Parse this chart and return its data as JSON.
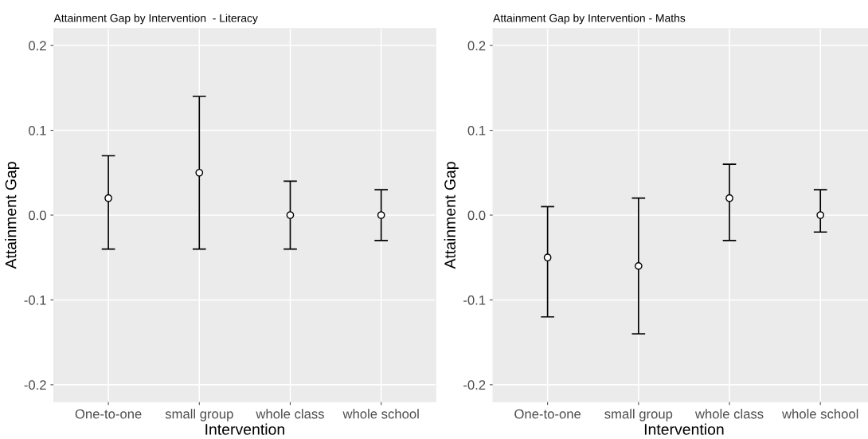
{
  "chart_data": [
    {
      "type": "scatter",
      "title": "Attainment Gap by Intervention  - Literacy",
      "xlabel": "Intervention",
      "ylabel": "Attainment Gap",
      "categories": [
        "One-to-one",
        "small group",
        "whole class",
        "whole school"
      ],
      "series": [
        {
          "color": "#000000",
          "values": [
            0.02,
            0.05,
            0.0,
            0.0
          ],
          "errors": [
            [
              -0.04,
              0.07
            ],
            [
              -0.04,
              0.14
            ],
            [
              -0.04,
              0.04
            ],
            [
              -0.03,
              0.03
            ]
          ]
        }
      ],
      "ylim": [
        -0.22,
        0.22
      ],
      "yticks": [
        -0.2,
        -0.1,
        {
          "value": 0,
          "label": "0.0"
        },
        0.1,
        0.2
      ],
      "grid": true,
      "marker": "circle",
      "legend": false
    },
    {
      "type": "scatter",
      "title": "Attainment Gap by Intervention - Maths",
      "xlabel": "Intervention",
      "ylabel": "Attainment Gap",
      "categories": [
        "One-to-one",
        "small group",
        "whole class",
        "whole school"
      ],
      "series": [
        {
          "color": "#000000",
          "values": [
            -0.05,
            -0.06,
            0.02,
            0.0
          ],
          "errors": [
            [
              -0.12,
              0.01
            ],
            [
              -0.14,
              0.02
            ],
            [
              -0.03,
              0.06
            ],
            [
              -0.02,
              0.03
            ]
          ]
        }
      ],
      "ylim": [
        -0.22,
        0.22
      ],
      "yticks": [
        -0.2,
        -0.1,
        {
          "value": 0,
          "label": "0.0"
        },
        0.1,
        0.2
      ],
      "grid": true,
      "marker": "circle",
      "legend": false
    }
  ]
}
